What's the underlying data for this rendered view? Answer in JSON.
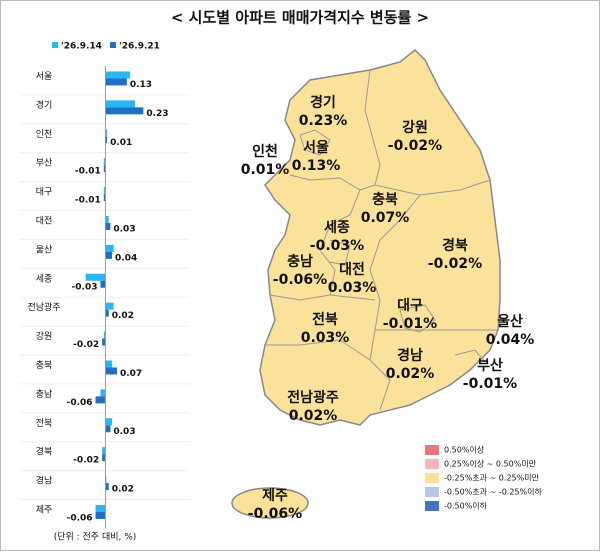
{
  "chart_data": [
    {
      "type": "bar",
      "title": "< 시도별 아파트 매매가격지수 변동률 >",
      "note": "(단위 : 전주 대비, %)",
      "categories": [
        "서울",
        "경기",
        "인천",
        "부산",
        "대구",
        "대전",
        "울산",
        "세종",
        "전남광주",
        "강원",
        "충북",
        "충남",
        "전북",
        "경북",
        "경남",
        "제주"
      ],
      "series": [
        {
          "name": "'26.9.14",
          "color": "#29b6f6",
          "values": [
            0.15,
            0.18,
            0.01,
            -0.01,
            -0.01,
            0.02,
            0.05,
            -0.12,
            0.05,
            -0.01,
            0.04,
            -0.03,
            0.04,
            -0.02,
            0.0,
            -0.06
          ]
        },
        {
          "name": "'26.9.21",
          "color": "#1e6fc8",
          "values": [
            0.13,
            0.23,
            0.01,
            -0.01,
            -0.01,
            0.03,
            0.04,
            -0.03,
            0.02,
            -0.02,
            0.07,
            -0.06,
            0.03,
            -0.02,
            0.02,
            -0.06
          ]
        }
      ],
      "xlim": [
        -0.13,
        0.24
      ]
    },
    {
      "type": "map",
      "categories": [
        "서울",
        "경기",
        "인천",
        "부산",
        "대구",
        "대전",
        "울산",
        "세종",
        "전남광주",
        "강원",
        "충북",
        "충남",
        "전북",
        "경북",
        "경남",
        "제주"
      ],
      "values": [
        0.13,
        0.23,
        0.01,
        -0.01,
        -0.01,
        0.03,
        0.04,
        -0.03,
        0.02,
        -0.02,
        0.07,
        -0.06,
        0.03,
        -0.02,
        0.02,
        -0.06
      ],
      "value_labels": [
        "0.13%",
        "0.23%",
        "0.01%",
        "-0.01%",
        "-0.01%",
        "0.03%",
        "0.04%",
        "-0.03%",
        "0.02%",
        "-0.02%",
        "0.07%",
        "-0.06%",
        "0.03%",
        "-0.02%",
        "0.02%",
        "-0.06%"
      ],
      "color": "#fbe29a",
      "legend": [
        {
          "label": "0.50%이상",
          "color": "#e8747c"
        },
        {
          "label": "0.25%이상 ~ 0.50%미만",
          "color": "#f4b6bb"
        },
        {
          "label": "-0.25%초과 ~ 0.25%미만",
          "color": "#fbe29a"
        },
        {
          "label": "-0.50%초과 ~ -0.25%이하",
          "color": "#b4c7e7"
        },
        {
          "label": "-0.50%이하",
          "color": "#4472c4"
        }
      ]
    }
  ]
}
